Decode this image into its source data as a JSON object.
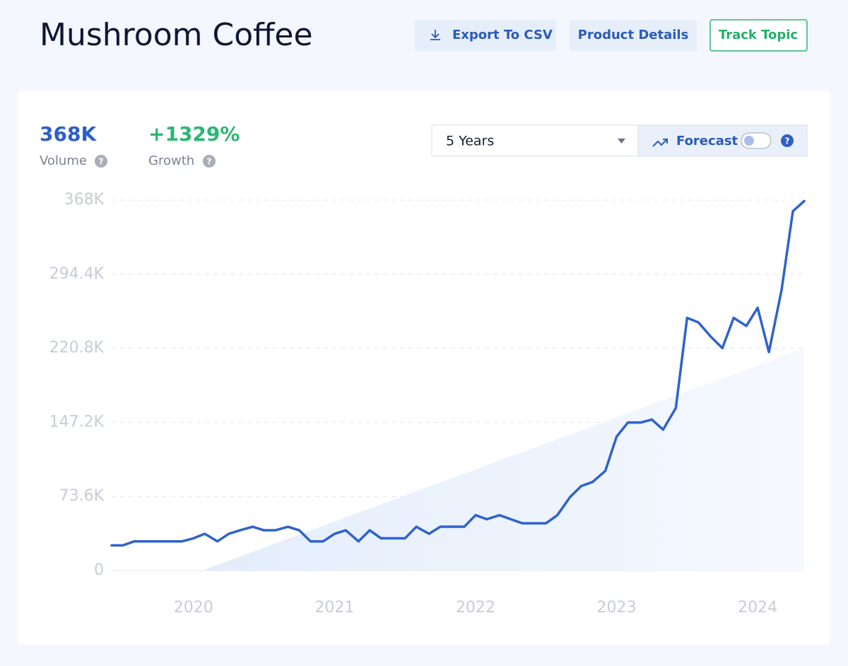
{
  "header": {
    "title": "Mushroom Coffee",
    "buttons": [
      "Export To CSV",
      "Product Details",
      "Track Topic"
    ]
  },
  "stats": [
    {
      "value": "368K",
      "label": "Volume"
    },
    {
      "value": "+1329%",
      "label": "Growth"
    }
  ],
  "controls": {
    "range": "5 Years",
    "forecast": "Forecast"
  },
  "chart_data": {
    "type": "line",
    "x": [
      2019.42,
      2019.5,
      2019.58,
      2019.67,
      2019.75,
      2019.83,
      2019.92,
      2020.0,
      2020.08,
      2020.17,
      2020.25,
      2020.33,
      2020.42,
      2020.5,
      2020.58,
      2020.67,
      2020.75,
      2020.83,
      2020.92,
      2021.0,
      2021.08,
      2021.17,
      2021.25,
      2021.33,
      2021.42,
      2021.5,
      2021.58,
      2021.67,
      2021.75,
      2021.83,
      2021.92,
      2022.0,
      2022.08,
      2022.17,
      2022.25,
      2022.33,
      2022.42,
      2022.5,
      2022.58,
      2022.67,
      2022.75,
      2022.83,
      2022.92,
      2023.0,
      2023.08,
      2023.17,
      2023.25,
      2023.33,
      2023.42,
      2023.5,
      2023.58,
      2023.67,
      2023.75,
      2023.83,
      2023.92,
      2024.0,
      2024.08,
      2024.17,
      2024.25,
      2024.33
    ],
    "series": [
      {
        "color": "#3062cc",
        "values": [
          25000,
          25000,
          29000,
          29000,
          29000,
          29000,
          29000,
          32000,
          36500,
          29000,
          36500,
          40000,
          43500,
          40000,
          40000,
          43500,
          40000,
          29000,
          29000,
          36500,
          40000,
          29000,
          40000,
          32000,
          32000,
          32000,
          43500,
          36500,
          43500,
          43500,
          43500,
          55000,
          51000,
          55000,
          51000,
          47000,
          47000,
          47000,
          55000,
          73000,
          84000,
          88000,
          99000,
          133000,
          147000,
          147000,
          150000,
          140000,
          161500,
          251000,
          246500,
          232000,
          221000,
          251000,
          243000,
          261000,
          217000,
          279000,
          357000,
          367000
        ]
      }
    ],
    "trend": {
      "x": [
        2020.06,
        2024.33
      ],
      "values": [
        0,
        221000
      ],
      "color": "#e6effb"
    },
    "xlim": [
      2019.42,
      2024.33
    ],
    "xticks": [
      2020,
      2021,
      2022,
      2023,
      2024
    ],
    "ylim": [
      0,
      368000
    ],
    "yticks": [
      0,
      {
        "value": 73600,
        "label": "73.6K"
      },
      {
        "value": 147200,
        "label": "147.2K"
      },
      {
        "value": 220800,
        "label": "220.8K"
      },
      {
        "value": 294400,
        "label": "294.4K"
      },
      {
        "value": 368000,
        "label": "368K"
      }
    ],
    "grid": true
  }
}
